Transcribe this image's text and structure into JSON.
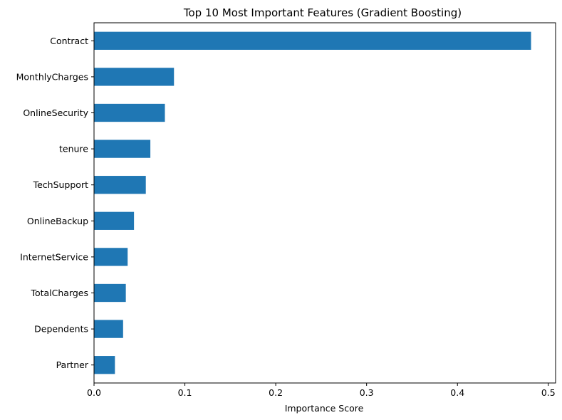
{
  "chart_data": {
    "type": "bar",
    "orientation": "horizontal",
    "title": "Top 10 Most Important Features (Gradient Boosting)",
    "xlabel": "Importance Score",
    "ylabel": "",
    "categories": [
      "Contract",
      "MonthlyCharges",
      "OnlineSecurity",
      "tenure",
      "TechSupport",
      "OnlineBackup",
      "InternetService",
      "TotalCharges",
      "Dependents",
      "Partner"
    ],
    "values": [
      0.481,
      0.088,
      0.078,
      0.062,
      0.057,
      0.044,
      0.037,
      0.035,
      0.032,
      0.023
    ],
    "xlim": [
      0,
      0.508
    ],
    "xticks": [
      0.0,
      0.1,
      0.2,
      0.3,
      0.4,
      0.5
    ],
    "xtick_labels": [
      "0.0",
      "0.1",
      "0.2",
      "0.3",
      "0.4",
      "0.5"
    ],
    "bar_color": "#1f77b4",
    "grid": false,
    "legend": "none"
  }
}
